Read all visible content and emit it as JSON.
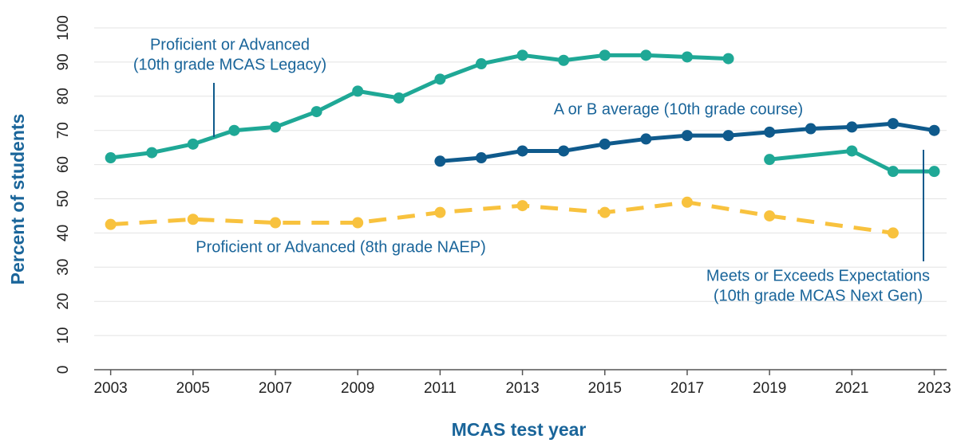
{
  "chart_data": {
    "type": "line",
    "x_label": "MCAS test year",
    "y_label": "Percent of students",
    "xlim": [
      2002.6,
      2023.3
    ],
    "ylim": [
      0,
      100
    ],
    "xticks": [
      2003,
      2005,
      2007,
      2009,
      2011,
      2013,
      2015,
      2017,
      2019,
      2021,
      2023
    ],
    "yticks": [
      0,
      10,
      20,
      30,
      40,
      50,
      60,
      70,
      80,
      90,
      100
    ],
    "grid": true,
    "series": [
      {
        "name": [
          "Proficient or Advanced",
          "(10th grade MCAS Legacy)"
        ],
        "color": "#1fa896",
        "dash": false,
        "x": [
          2003,
          2004,
          2005,
          2006,
          2007,
          2008,
          2009,
          2010,
          2011,
          2012,
          2013,
          2014,
          2015,
          2016,
          2017,
          2018
        ],
        "values": [
          62,
          63.5,
          66,
          70,
          71,
          75.5,
          81.5,
          79.5,
          85,
          89.5,
          92,
          90.5,
          92,
          92,
          91.5,
          91
        ]
      },
      {
        "name": [
          "A or B average (10th grade course)"
        ],
        "color": "#0f5a8c",
        "dash": false,
        "x": [
          2011,
          2012,
          2013,
          2014,
          2015,
          2016,
          2017,
          2018,
          2019,
          2020,
          2021,
          2022,
          2023
        ],
        "values": [
          61,
          62,
          64,
          64,
          66,
          67.5,
          68.5,
          68.5,
          69.5,
          70.5,
          71,
          72,
          70
        ]
      },
      {
        "name": [
          "Meets or Exceeds Expectations",
          "(10th grade MCAS Next Gen)"
        ],
        "color": "#1fa896",
        "dash": false,
        "x": [
          2019,
          2021,
          2022,
          2023
        ],
        "values": [
          61.5,
          64,
          58,
          58
        ]
      },
      {
        "name": [
          "Proficient or Advanced (8th grade NAEP)"
        ],
        "color": "#f8c23e",
        "dash": true,
        "x": [
          2003,
          2005,
          2007,
          2009,
          2011,
          2013,
          2015,
          2017,
          2019,
          2022
        ],
        "values": [
          42.5,
          44,
          43,
          43,
          46,
          48,
          46,
          49,
          45,
          40
        ]
      }
    ]
  }
}
